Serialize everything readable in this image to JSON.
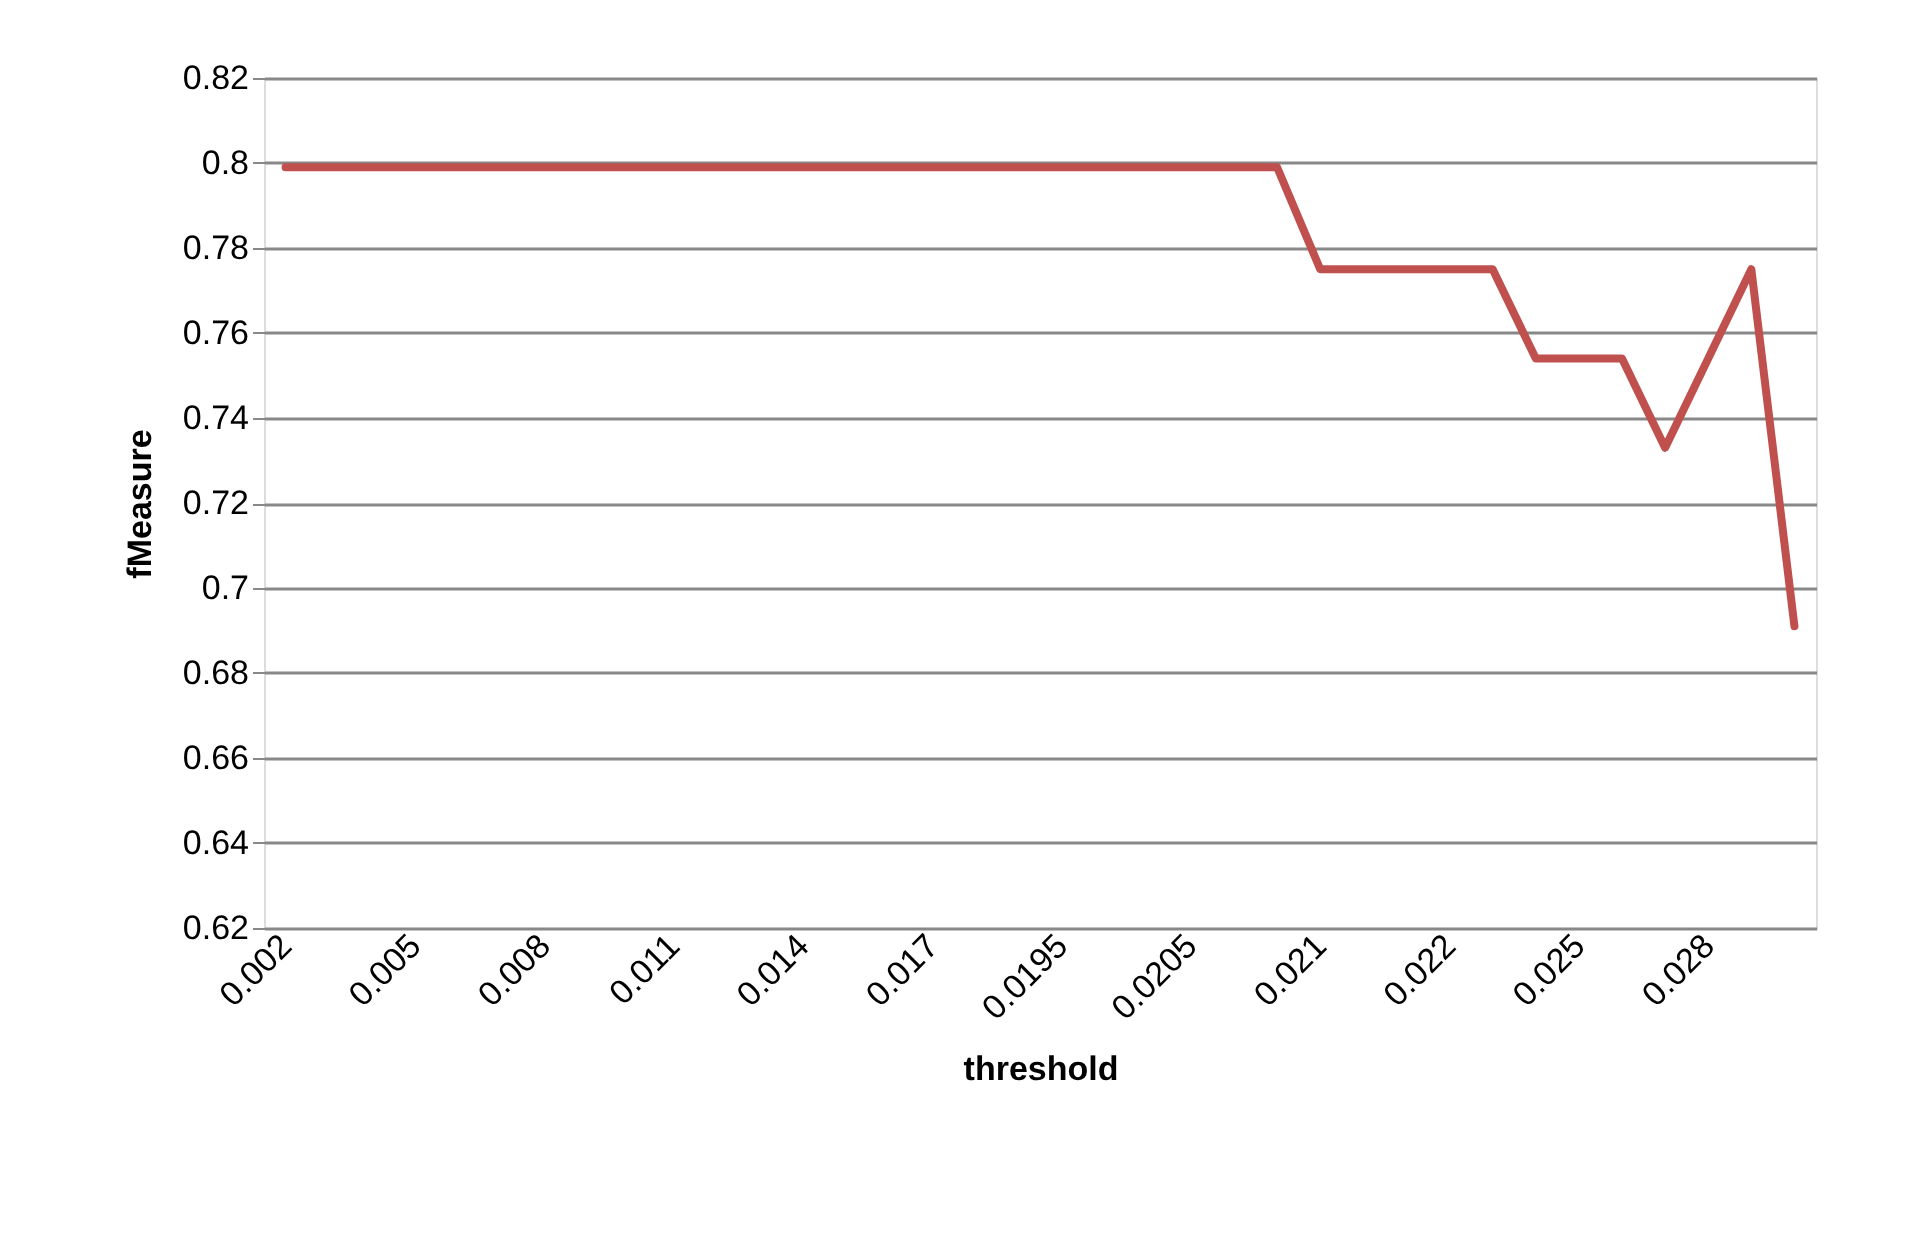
{
  "chart_data": {
    "type": "line",
    "xlabel": "threshold",
    "ylabel": "fMeasure",
    "categories": [
      "0.002",
      null,
      null,
      "0.005",
      null,
      null,
      "0.008",
      null,
      null,
      "0.011",
      null,
      null,
      "0.014",
      null,
      null,
      "0.017",
      null,
      null,
      "0.0195",
      null,
      null,
      "0.0205",
      null,
      null,
      "0.021",
      null,
      null,
      "0.022",
      null,
      null,
      "0.025",
      null,
      null,
      "0.028",
      null,
      null
    ],
    "series": [
      {
        "color": "#c0504d",
        "values": [
          0.799,
          0.799,
          0.799,
          0.799,
          0.799,
          0.799,
          0.799,
          0.799,
          0.799,
          0.799,
          0.799,
          0.799,
          0.799,
          0.799,
          0.799,
          0.799,
          0.799,
          0.799,
          0.799,
          0.799,
          0.799,
          0.799,
          0.799,
          0.799,
          0.775,
          0.775,
          0.775,
          0.775,
          0.775,
          0.754,
          0.754,
          0.754,
          0.733,
          0.754,
          0.775,
          0.691
        ]
      }
    ],
    "ylim": [
      0.62,
      0.82
    ],
    "yticks": [
      0.62,
      0.64,
      0.66,
      0.68,
      0.7,
      0.72,
      0.74,
      0.76,
      0.78,
      0.8,
      0.82
    ],
    "grid": "y",
    "marker": "none",
    "line_style": "solid"
  }
}
